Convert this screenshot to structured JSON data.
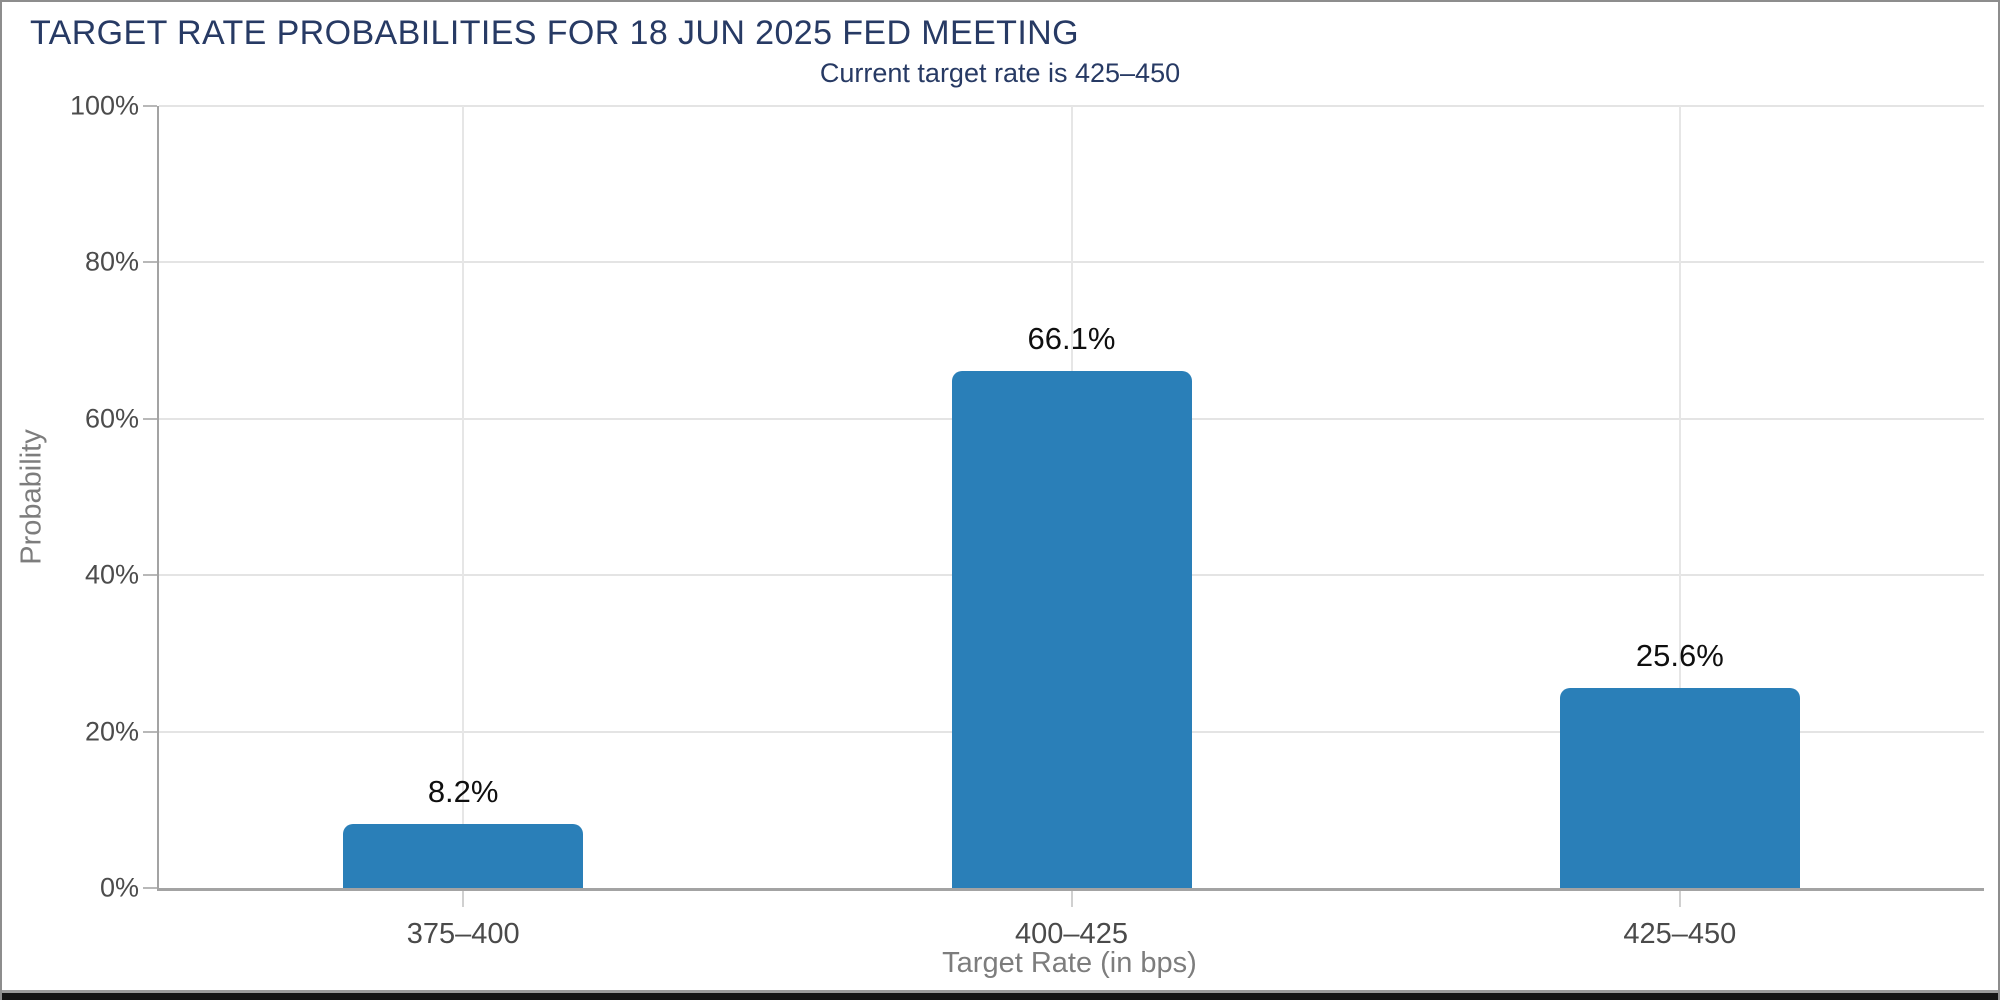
{
  "header": {
    "title": "TARGET RATE PROBABILITIES FOR 18 JUN 2025 FED MEETING"
  },
  "chart_data": {
    "type": "bar",
    "title": "TARGET RATE PROBABILITIES FOR 18 JUN 2025 FED MEETING",
    "subtitle": "Current target rate is 425–450",
    "categories": [
      "375–400",
      "400–425",
      "425–450"
    ],
    "values": [
      8.2,
      66.1,
      25.6
    ],
    "value_labels": [
      "8.2%",
      "66.1%",
      "25.6%"
    ],
    "xlabel": "Target Rate (in bps)",
    "ylabel": "Probability",
    "ylim": [
      0,
      100
    ],
    "yticks": [
      0,
      20,
      40,
      60,
      80,
      100
    ],
    "ytick_labels": [
      "0%",
      "20%",
      "40%",
      "60%",
      "80%",
      "100%"
    ],
    "grid": true,
    "legend": "none",
    "bar_color": "#2a7fb8",
    "title_color": "#273a64"
  }
}
